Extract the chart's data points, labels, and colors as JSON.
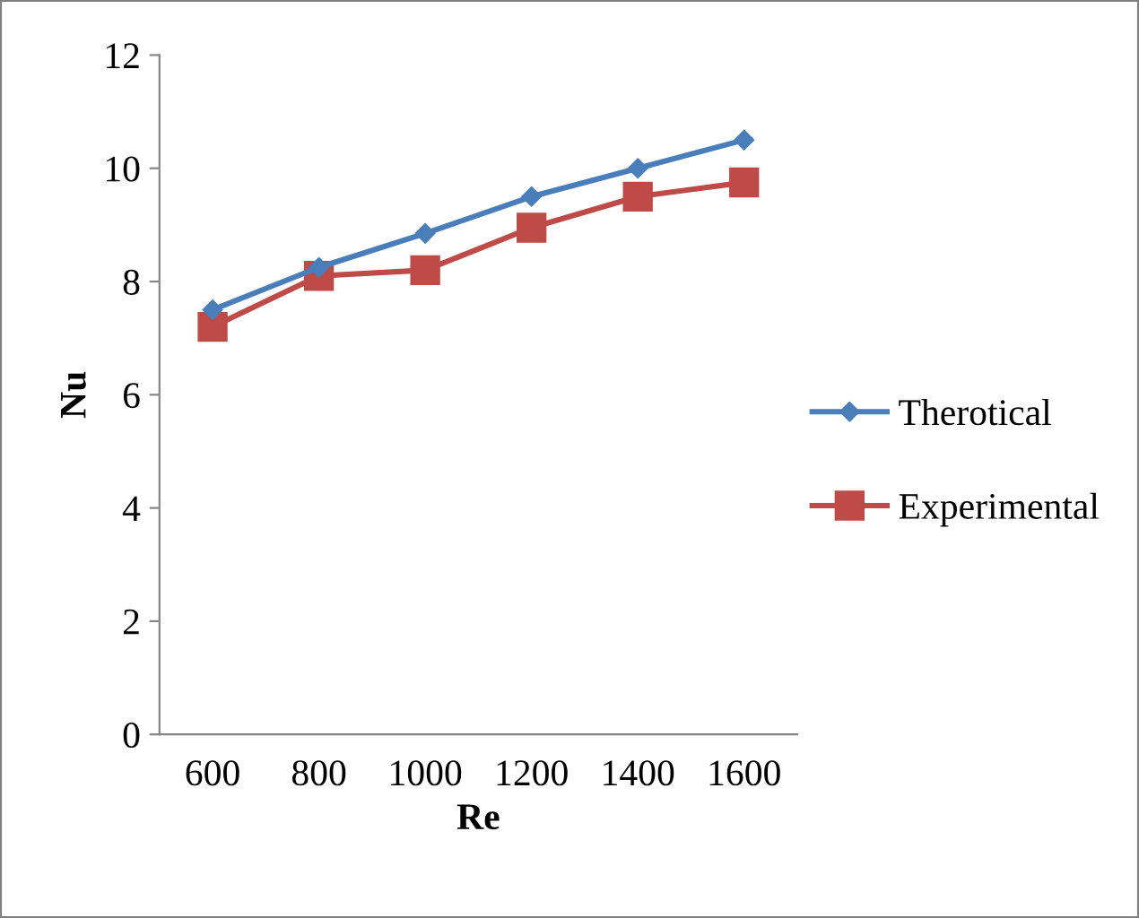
{
  "chart_data": {
    "type": "line",
    "xlabel": "Re",
    "ylabel": "Nu",
    "categories": [
      "600",
      "800",
      "1000",
      "1200",
      "1400",
      "1600"
    ],
    "series": [
      {
        "name": "Therotical",
        "color": "#4a7ebb",
        "marker": "diamond",
        "values": [
          7.5,
          8.25,
          8.85,
          9.5,
          10.0,
          10.5
        ]
      },
      {
        "name": "Experimental",
        "color": "#be4b48",
        "marker": "square",
        "values": [
          7.2,
          8.1,
          8.2,
          8.95,
          9.5,
          9.75
        ]
      }
    ],
    "ylim": [
      0,
      12
    ],
    "yticks": [
      0,
      2,
      4,
      6,
      8,
      10,
      12
    ],
    "grid": false,
    "legend": "right"
  }
}
